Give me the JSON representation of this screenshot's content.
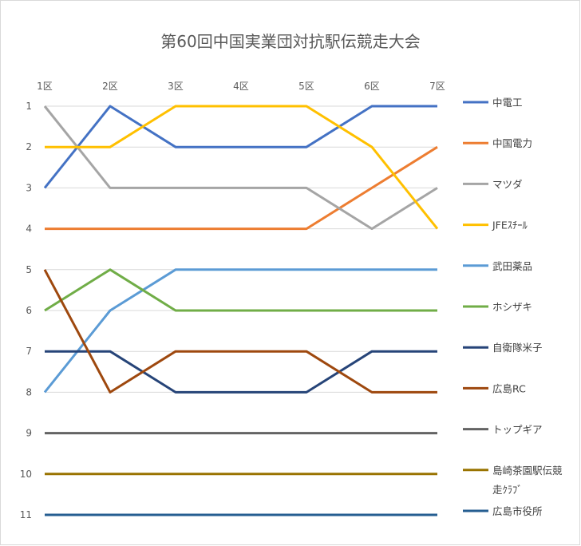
{
  "chart_data": {
    "type": "line",
    "title": "第60回中国実業団対抗駅伝競走大会",
    "xlabel": "",
    "ylabel": "",
    "categories": [
      "1区",
      "2区",
      "3区",
      "4区",
      "5区",
      "6区",
      "7区"
    ],
    "y_ticks": [
      "1",
      "2",
      "3",
      "4",
      "5",
      "6",
      "7",
      "8",
      "9",
      "10",
      "11"
    ],
    "ylim": [
      1,
      11
    ],
    "y_reversed": true,
    "grid": "horizontal",
    "legend_position": "right",
    "series": [
      {
        "name": "中電工",
        "color": "#4472c4",
        "values": [
          3,
          1,
          2,
          2,
          2,
          1,
          1
        ]
      },
      {
        "name": "中国電力",
        "color": "#ed7d31",
        "values": [
          4,
          4,
          4,
          4,
          4,
          3,
          2
        ]
      },
      {
        "name": "マツダ",
        "color": "#a5a5a5",
        "values": [
          1,
          3,
          3,
          3,
          3,
          4,
          3
        ]
      },
      {
        "name": "JFEｽﾁｰﾙ",
        "color": "#ffc000",
        "values": [
          2,
          2,
          1,
          1,
          1,
          2,
          4
        ]
      },
      {
        "name": "武田薬品",
        "color": "#5b9bd5",
        "values": [
          8,
          6,
          5,
          5,
          5,
          5,
          5
        ]
      },
      {
        "name": "ホシザキ",
        "color": "#70ad47",
        "values": [
          6,
          5,
          6,
          6,
          6,
          6,
          6
        ]
      },
      {
        "name": "自衛隊米子",
        "color": "#264478",
        "values": [
          7,
          7,
          8,
          8,
          8,
          7,
          7
        ]
      },
      {
        "name": "広島RC",
        "color": "#9e480e",
        "values": [
          5,
          8,
          7,
          7,
          7,
          8,
          8
        ]
      },
      {
        "name": "トップギア",
        "color": "#636363",
        "values": [
          9,
          9,
          9,
          9,
          9,
          9,
          9
        ]
      },
      {
        "name": "島崎茶園駅伝競走ｸﾗﾌﾞ",
        "color": "#997300",
        "label_lines": [
          "島崎茶園駅伝競",
          "走ｸﾗﾌﾞ"
        ],
        "values": [
          10,
          10,
          10,
          10,
          10,
          10,
          10
        ]
      },
      {
        "name": "広島市役所",
        "color": "#255e91",
        "values": [
          11,
          11,
          11,
          11,
          11,
          11,
          11
        ]
      }
    ]
  }
}
